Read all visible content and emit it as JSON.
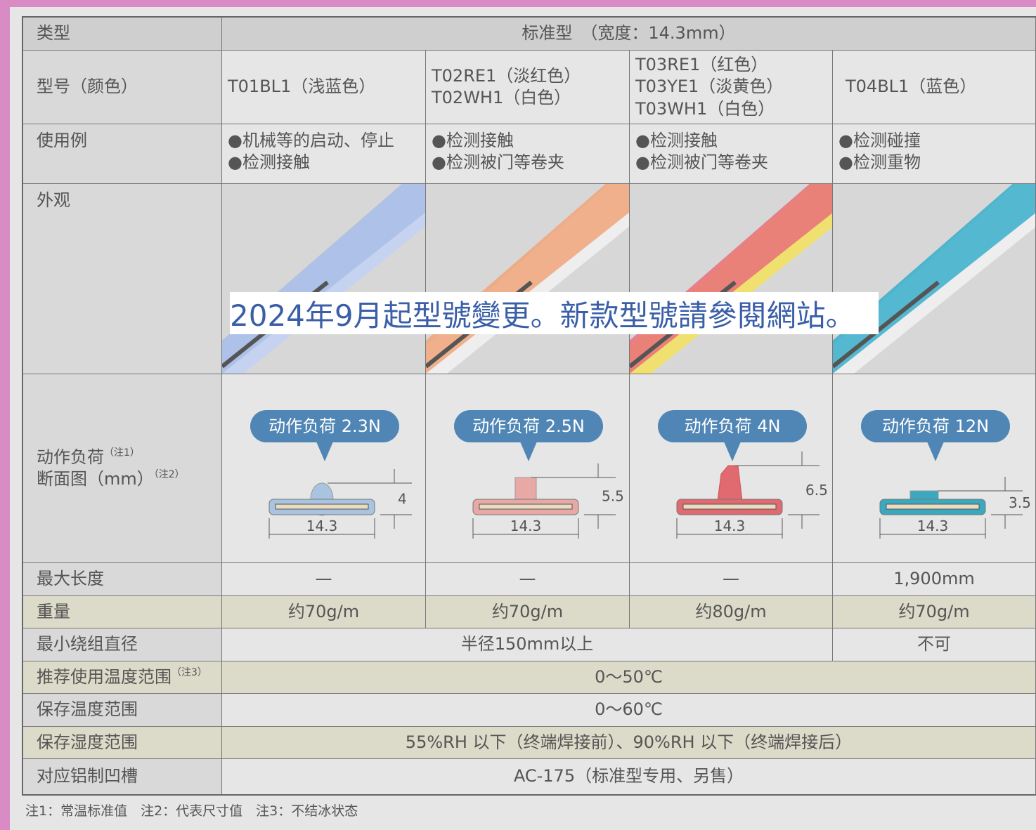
{
  "type_row": {
    "label": "类型",
    "value": "标准型　（宽度：14.3mm）"
  },
  "models": {
    "label": "型号（颜色）",
    "cells": [
      [
        "T01BL1（浅蓝色）"
      ],
      [
        "T02RE1（淡红色）",
        "T02WH1（白色）"
      ],
      [
        "T03RE1（红色）",
        "T03YE1（淡黄色）",
        "T03WH1（白色）"
      ],
      [
        "T04BL1（蓝色）"
      ]
    ]
  },
  "usage": {
    "label": "使用例",
    "cells": [
      [
        "●机械等的启动、停止",
        "●检测接触"
      ],
      [
        "●检测接触",
        "●检测被门等卷夹"
      ],
      [
        "●检测接触",
        "●检测被门等卷夹"
      ],
      [
        "●检测碰撞",
        "●检测重物"
      ]
    ]
  },
  "appearance": {
    "label": "外观"
  },
  "load": {
    "label": "动作负荷",
    "label_note": "（注1）",
    "section_label": "断面图（mm）",
    "section_note": "（注2）",
    "cells": [
      {
        "callout": "动作负荷 2.3N",
        "height": "4",
        "width": "14.3"
      },
      {
        "callout": "动作负荷 2.5N",
        "height": "5.5",
        "width": "14.3"
      },
      {
        "callout": "动作负荷 4N",
        "height": "6.5",
        "width": "14.3"
      },
      {
        "callout": "动作负荷 12N",
        "height": "3.5",
        "width": "14.3"
      }
    ]
  },
  "rows": [
    {
      "label": "最大长度",
      "cells": [
        "—",
        "—",
        "—",
        "1,900mm"
      ]
    },
    {
      "label": "重量",
      "cells": [
        "约70g/m",
        "约70g/m",
        "约80g/m",
        "约70g/m"
      ]
    },
    {
      "label": "最小绕组直径",
      "cells": [
        "半径150mm以上",
        "不可"
      ]
    },
    {
      "label": "推荐使用温度范围",
      "note": "（注3）",
      "cells": [
        "0～50℃"
      ]
    },
    {
      "label": "保存温度范围",
      "cells": [
        "0～60℃"
      ]
    },
    {
      "label": "保存湿度范围",
      "cells": [
        "55%RH 以下（终端焊接前）、90%RH 以下（终端焊接后）"
      ]
    },
    {
      "label": "对应铝制凹槽",
      "cells": [
        "AC-175（标准型专用、另售）"
      ]
    }
  ],
  "notice": "2024年9月起型號變更。新款型號請參閱網站。",
  "footnote": "注1：常温标准值　注2：代表尺寸值　注3：不结冰状态"
}
